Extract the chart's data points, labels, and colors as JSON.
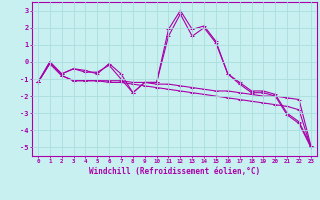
{
  "xlabel": "Windchill (Refroidissement éolien,°C)",
  "bg_color": "#c8f0f0",
  "line_color": "#aa00aa",
  "grid_color": "#aadddd",
  "xlim": [
    -0.5,
    23.5
  ],
  "ylim": [
    -5.5,
    3.5
  ],
  "yticks": [
    -5,
    -4,
    -3,
    -2,
    -1,
    0,
    1,
    2,
    3
  ],
  "xticks": [
    0,
    1,
    2,
    3,
    4,
    5,
    6,
    7,
    8,
    9,
    10,
    11,
    12,
    13,
    14,
    15,
    16,
    17,
    18,
    19,
    20,
    21,
    22,
    23
  ],
  "line1": [
    -1.2,
    0.0,
    -0.7,
    -0.4,
    -0.5,
    -0.7,
    -0.1,
    -0.7,
    -1.8,
    -1.2,
    -1.2,
    1.9,
    3.0,
    1.9,
    2.1,
    1.2,
    -0.7,
    -1.2,
    -1.7,
    -1.7,
    -1.9,
    -3.0,
    -3.5,
    -4.9
  ],
  "line2": [
    -1.2,
    0.0,
    -0.7,
    -0.4,
    -0.6,
    -0.6,
    -0.2,
    -1.0,
    -1.8,
    -1.2,
    -1.2,
    1.5,
    2.8,
    1.5,
    2.0,
    1.1,
    -0.7,
    -1.3,
    -1.8,
    -1.8,
    -2.0,
    -3.1,
    -3.6,
    -5.0
  ],
  "line3": [
    -1.2,
    -0.1,
    -0.8,
    -1.1,
    -1.1,
    -1.1,
    -1.1,
    -1.1,
    -1.2,
    -1.2,
    -1.3,
    -1.3,
    -1.4,
    -1.5,
    -1.6,
    -1.7,
    -1.7,
    -1.8,
    -1.9,
    -2.0,
    -2.0,
    -2.1,
    -2.2,
    -4.9
  ],
  "line4": [
    -1.2,
    -0.1,
    -0.8,
    -1.1,
    -1.1,
    -1.1,
    -1.2,
    -1.2,
    -1.3,
    -1.4,
    -1.5,
    -1.6,
    -1.7,
    -1.8,
    -1.9,
    -2.0,
    -2.1,
    -2.2,
    -2.3,
    -2.4,
    -2.5,
    -2.6,
    -2.8,
    -5.0
  ]
}
